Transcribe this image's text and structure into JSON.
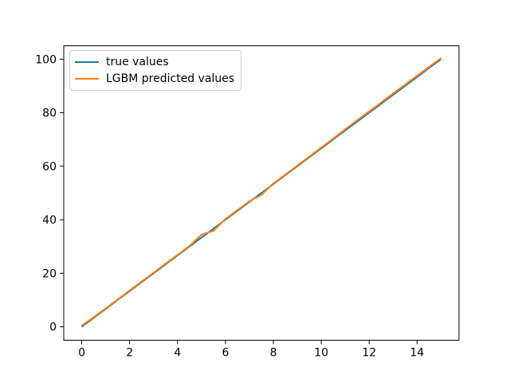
{
  "figure": {
    "background": "#ffffff"
  },
  "chart_data": {
    "type": "line",
    "title": "",
    "xlabel": "",
    "ylabel": "",
    "x": [
      0,
      0.5,
      1,
      1.5,
      2,
      2.5,
      3,
      3.5,
      4,
      4.5,
      5,
      5.5,
      6,
      6.5,
      7,
      7.5,
      8,
      8.5,
      9,
      9.5,
      10,
      10.5,
      11,
      11.5,
      12,
      12.5,
      13,
      13.5,
      14,
      14.5,
      15
    ],
    "series": [
      {
        "name": "true values",
        "color": "#1f77b4",
        "values": [
          0,
          3.33,
          6.67,
          10,
          13.33,
          16.67,
          20,
          23.33,
          26.67,
          30,
          33.33,
          36.67,
          40,
          43.33,
          46.67,
          50,
          53.33,
          56.67,
          60,
          63.33,
          66.67,
          70,
          73.33,
          76.67,
          80,
          83.33,
          86.67,
          90,
          93.33,
          96.67,
          100
        ]
      },
      {
        "name": "LGBM predicted values",
        "color": "#ff7f0e",
        "values": [
          0.4,
          3.6,
          6.9,
          10.2,
          13.6,
          16.9,
          20.2,
          23.6,
          26.9,
          30.2,
          34.4,
          35.9,
          40.3,
          43.6,
          46.9,
          49.3,
          53.6,
          56.9,
          60.2,
          63.6,
          67.0,
          70.3,
          73.8,
          77.2,
          80.5,
          83.8,
          87.2,
          90.5,
          93.8,
          97.1,
          100.4
        ]
      }
    ],
    "xlim": [
      -0.75,
      15.75
    ],
    "ylim": [
      -5,
      105
    ],
    "xticks": [
      0,
      2,
      4,
      6,
      8,
      10,
      12,
      14
    ],
    "yticks": [
      0,
      20,
      40,
      60,
      80,
      100
    ],
    "grid": false,
    "legend": {
      "position": "upper-left",
      "entries": [
        "true values",
        "LGBM predicted values"
      ]
    }
  },
  "colors": {
    "axis": "#000000",
    "tick_label": "#000000",
    "legend_border": "#cccccc",
    "legend_background": "rgba(255,255,255,0.8)"
  }
}
